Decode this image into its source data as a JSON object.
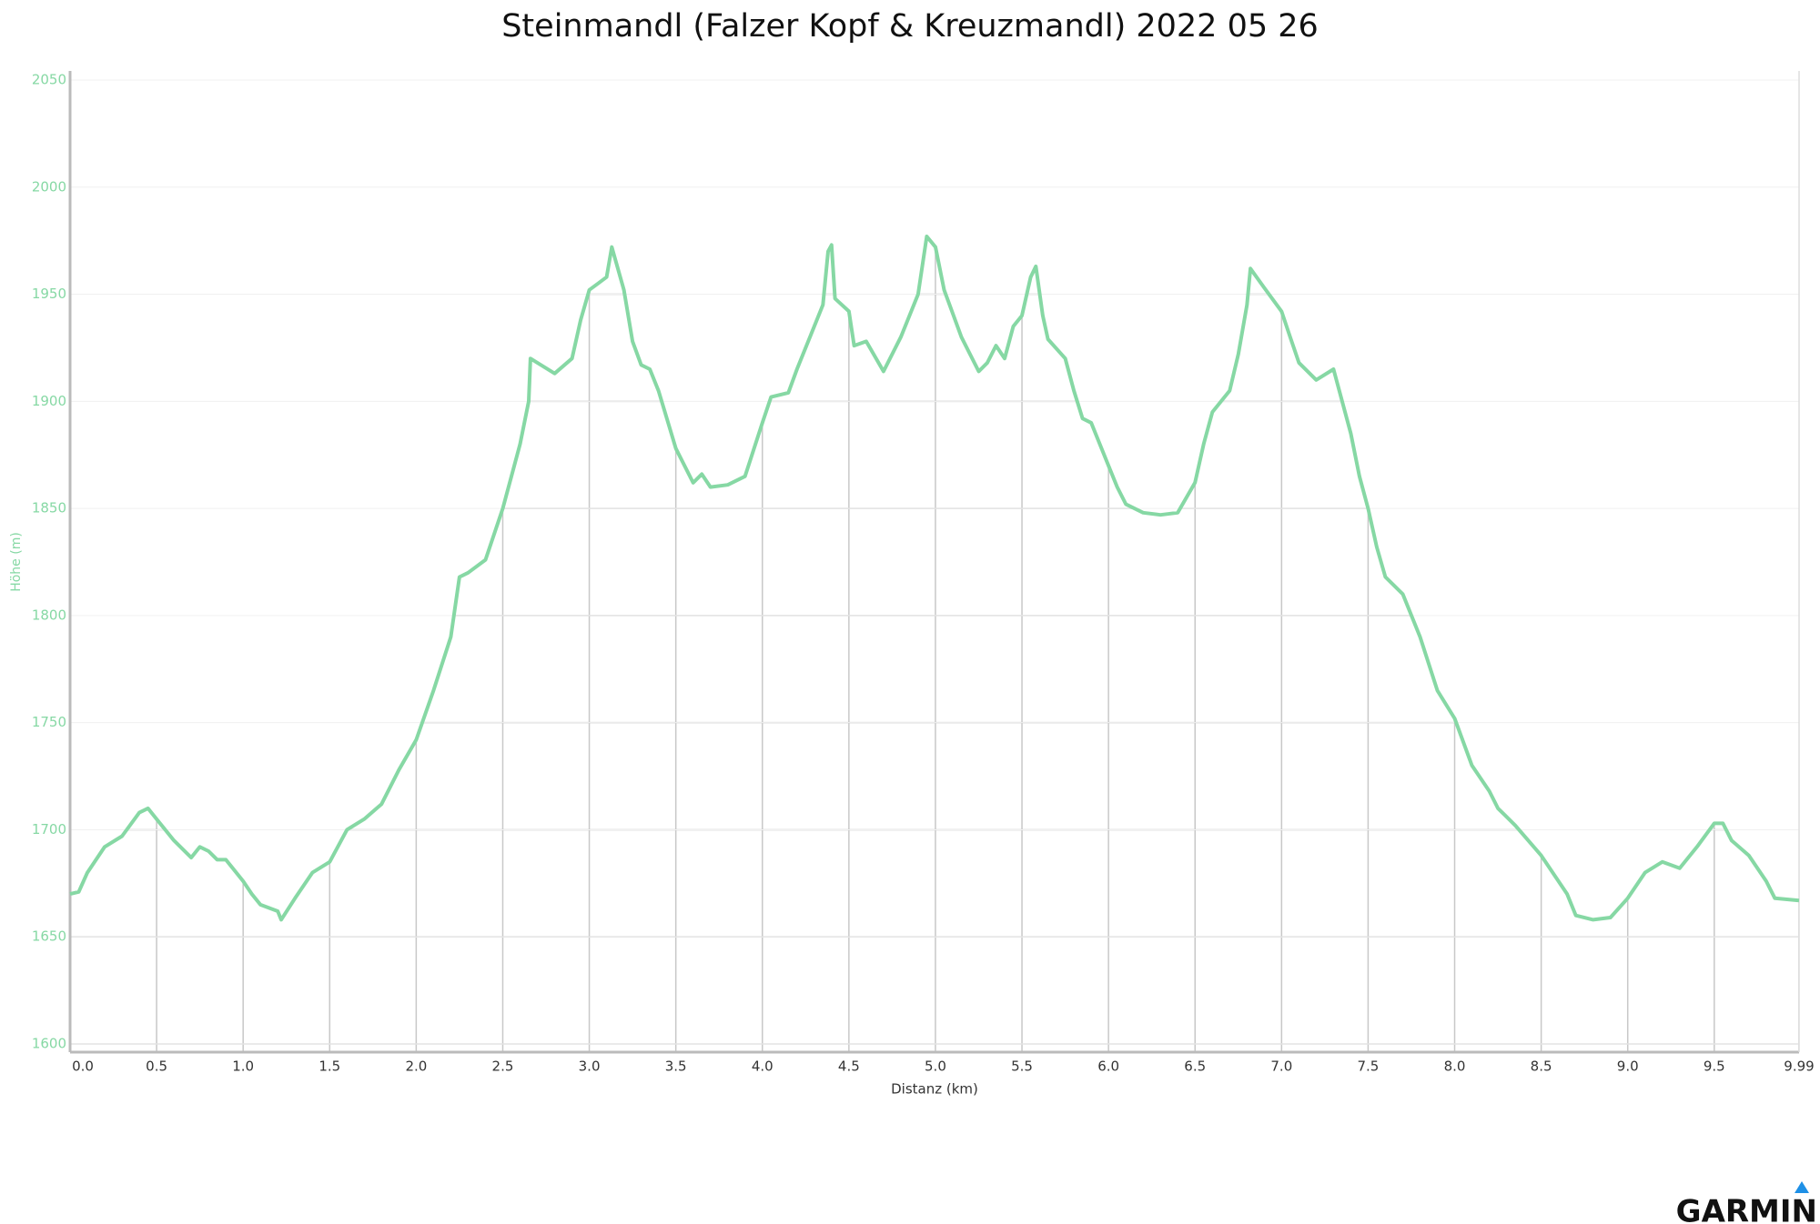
{
  "chart_data": {
    "type": "line",
    "title": "Steinmandl (Falzer Kopf & Kreuzmandl) 2022 05 26",
    "x_label": "Distanz (km)",
    "y_label": "Höhe (m)",
    "logo": "GARMIN",
    "color": "#86d8a4",
    "grid": true,
    "xlim": [
      0,
      9.99
    ],
    "ylim": [
      1600,
      2050
    ],
    "xticks": [
      {
        "value": 0,
        "label": "0.0"
      },
      0.5,
      {
        "value": 1,
        "label": "1.0"
      },
      1.5,
      {
        "value": 2,
        "label": "2.0"
      },
      2.5,
      {
        "value": 3,
        "label": "3.0"
      },
      3.5,
      {
        "value": 4,
        "label": "4.0"
      },
      4.5,
      {
        "value": 5,
        "label": "5.0"
      },
      5.5,
      {
        "value": 6,
        "label": "6.0"
      },
      6.5,
      {
        "value": 7,
        "label": "7.0"
      },
      7.5,
      {
        "value": 8,
        "label": "8.0"
      },
      8.5,
      {
        "value": 9,
        "label": "9.0"
      },
      9.5,
      9.99
    ],
    "yticks": [
      1600,
      1650,
      1700,
      1750,
      1800,
      1850,
      1900,
      1950,
      2000,
      2050
    ],
    "x": [
      0,
      0.05,
      0.1,
      0.2,
      0.3,
      0.4,
      0.45,
      0.5,
      0.6,
      0.7,
      0.75,
      0.8,
      0.85,
      0.9,
      1.0,
      1.05,
      1.1,
      1.2,
      1.22,
      1.3,
      1.4,
      1.5,
      1.6,
      1.7,
      1.8,
      1.9,
      2.0,
      2.1,
      2.2,
      2.25,
      2.3,
      2.4,
      2.5,
      2.55,
      2.6,
      2.65,
      2.66,
      2.7,
      2.8,
      2.9,
      2.95,
      3.0,
      3.05,
      3.1,
      3.13,
      3.2,
      3.25,
      3.3,
      3.35,
      3.4,
      3.5,
      3.6,
      3.65,
      3.7,
      3.8,
      3.9,
      4.0,
      4.05,
      4.15,
      4.2,
      4.3,
      4.35,
      4.38,
      4.4,
      4.42,
      4.5,
      4.53,
      4.6,
      4.7,
      4.8,
      4.9,
      4.95,
      5.0,
      5.05,
      5.15,
      5.25,
      5.3,
      5.35,
      5.4,
      5.45,
      5.5,
      5.55,
      5.58,
      5.62,
      5.65,
      5.75,
      5.8,
      5.85,
      5.9,
      6.0,
      6.05,
      6.1,
      6.2,
      6.3,
      6.4,
      6.5,
      6.55,
      6.6,
      6.7,
      6.75,
      6.8,
      6.82,
      6.9,
      7.0,
      7.05,
      7.1,
      7.2,
      7.3,
      7.4,
      7.45,
      7.5,
      7.55,
      7.6,
      7.7,
      7.8,
      7.9,
      8.0,
      8.1,
      8.2,
      8.25,
      8.35,
      8.5,
      8.6,
      8.65,
      8.7,
      8.8,
      8.9,
      9.0,
      9.1,
      9.2,
      9.3,
      9.4,
      9.5,
      9.55,
      9.6,
      9.7,
      9.8,
      9.85,
      9.99
    ],
    "values": [
      1670,
      1671,
      1680,
      1692,
      1697,
      1708,
      1710,
      1705,
      1695,
      1687,
      1692,
      1690,
      1686,
      1686,
      1676,
      1670,
      1665,
      1662,
      1658,
      1668,
      1680,
      1685,
      1700,
      1705,
      1712,
      1728,
      1742,
      1765,
      1790,
      1818,
      1820,
      1826,
      1850,
      1865,
      1880,
      1900,
      1920,
      1918,
      1913,
      1920,
      1938,
      1952,
      1955,
      1958,
      1972,
      1952,
      1928,
      1917,
      1915,
      1905,
      1878,
      1862,
      1866,
      1860,
      1861,
      1865,
      1890,
      1902,
      1904,
      1915,
      1935,
      1945,
      1970,
      1973,
      1948,
      1942,
      1926,
      1928,
      1914,
      1930,
      1950,
      1977,
      1972,
      1952,
      1930,
      1914,
      1918,
      1926,
      1920,
      1935,
      1940,
      1958,
      1963,
      1940,
      1929,
      1920,
      1905,
      1892,
      1890,
      1870,
      1860,
      1852,
      1848,
      1847,
      1848,
      1862,
      1880,
      1895,
      1905,
      1922,
      1945,
      1962,
      1953,
      1942,
      1930,
      1918,
      1910,
      1915,
      1885,
      1865,
      1850,
      1832,
      1818,
      1810,
      1790,
      1765,
      1752,
      1730,
      1718,
      1710,
      1702,
      1688,
      1676,
      1670,
      1660,
      1658,
      1659,
      1668,
      1680,
      1685,
      1682,
      1692,
      1703,
      1703,
      1695,
      1688,
      1676,
      1668,
      1667
    ]
  }
}
